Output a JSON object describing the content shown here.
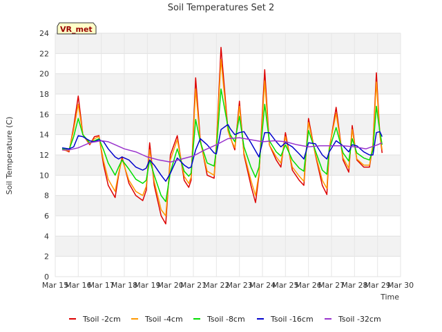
{
  "chart_data": {
    "type": "line",
    "title": "Soil Temperatures Set 2",
    "xlabel": "Time",
    "ylabel": "Soil Temperature (C)",
    "site_label": "VR_met",
    "xlim": [
      15,
      30
    ],
    "ylim": [
      0,
      24
    ],
    "x_ticks": [
      15,
      16,
      17,
      18,
      19,
      20,
      21,
      22,
      23,
      24,
      25,
      26,
      27,
      28,
      29,
      30
    ],
    "x_tick_labels": [
      "Mar 15",
      "Mar 16",
      "Mar 17",
      "Mar 18",
      "Mar 19",
      "Mar 20",
      "Mar 21",
      "Mar 22",
      "Mar 23",
      "Mar 24",
      "Mar 25",
      "Mar 26",
      "Mar 27",
      "Mar 28",
      "Mar 29",
      "Mar 30"
    ],
    "y_ticks": [
      0,
      2,
      4,
      6,
      8,
      10,
      12,
      14,
      16,
      18,
      20,
      22,
      24
    ],
    "grid": true,
    "legend_position": "bottom",
    "series": [
      {
        "name": "Tsoil -2cm",
        "color": "#dd0000",
        "x": [
          15.3,
          15.6,
          15.8,
          16.0,
          16.2,
          16.5,
          16.7,
          16.9,
          17.1,
          17.3,
          17.6,
          17.75,
          17.9,
          18.2,
          18.5,
          18.8,
          18.95,
          19.1,
          19.3,
          19.6,
          19.8,
          20.0,
          20.3,
          20.6,
          20.8,
          20.9,
          21.1,
          21.3,
          21.6,
          21.9,
          22.0,
          22.2,
          22.5,
          22.6,
          22.8,
          23.0,
          23.2,
          23.5,
          23.7,
          23.85,
          24.1,
          24.3,
          24.6,
          24.8,
          25.0,
          25.3,
          25.6,
          25.8,
          26.0,
          26.3,
          26.6,
          26.8,
          26.9,
          27.2,
          27.5,
          27.75,
          27.9,
          28.1,
          28.4,
          28.65,
          28.8,
          28.95,
          29.1,
          29.2
        ],
        "y": [
          12.6,
          12.3,
          14.8,
          17.8,
          14.0,
          13.0,
          13.8,
          13.9,
          11.0,
          9.0,
          7.8,
          10.0,
          11.8,
          9.2,
          8.0,
          7.5,
          8.5,
          13.2,
          9.0,
          6.0,
          5.2,
          12.0,
          13.9,
          9.5,
          8.8,
          9.5,
          19.6,
          13.5,
          10.0,
          9.7,
          13.0,
          22.6,
          14.5,
          13.8,
          12.5,
          17.3,
          12.0,
          9.0,
          7.3,
          10.0,
          20.4,
          13.0,
          11.5,
          10.8,
          14.2,
          10.5,
          9.5,
          9.0,
          15.6,
          12.0,
          9.0,
          8.1,
          12.5,
          16.7,
          11.5,
          10.3,
          14.9,
          11.5,
          10.8,
          10.8,
          13.0,
          20.1,
          14.0,
          12.2
        ]
      },
      {
        "name": "Tsoil -4cm",
        "color": "#ff9900",
        "x": [
          15.3,
          15.6,
          15.8,
          16.0,
          16.2,
          16.5,
          16.7,
          16.9,
          17.1,
          17.3,
          17.6,
          17.75,
          17.9,
          18.2,
          18.5,
          18.8,
          18.95,
          19.1,
          19.3,
          19.6,
          19.8,
          20.0,
          20.3,
          20.6,
          20.8,
          20.9,
          21.1,
          21.3,
          21.6,
          21.9,
          22.0,
          22.2,
          22.5,
          22.6,
          22.8,
          23.0,
          23.2,
          23.5,
          23.7,
          23.85,
          24.1,
          24.3,
          24.6,
          24.8,
          25.0,
          25.3,
          25.6,
          25.8,
          26.0,
          26.3,
          26.6,
          26.8,
          26.9,
          27.2,
          27.5,
          27.75,
          27.9,
          28.1,
          28.4,
          28.65,
          28.8,
          28.95,
          29.1,
          29.2
        ],
        "y": [
          12.5,
          12.4,
          14.5,
          17.0,
          14.0,
          13.1,
          13.6,
          13.8,
          11.4,
          9.6,
          8.4,
          10.2,
          11.6,
          9.5,
          8.4,
          8.0,
          8.9,
          12.5,
          9.4,
          6.6,
          6.0,
          11.5,
          13.5,
          9.9,
          9.2,
          9.8,
          18.5,
          13.3,
          10.4,
          10.0,
          13.0,
          21.4,
          14.4,
          13.7,
          12.7,
          16.8,
          12.2,
          9.5,
          8.0,
          10.2,
          19.3,
          13.0,
          11.8,
          11.2,
          13.8,
          10.8,
          9.9,
          9.4,
          15.2,
          12.1,
          9.5,
          8.7,
          12.7,
          16.1,
          11.7,
          10.7,
          14.5,
          11.6,
          11.0,
          11.0,
          13.0,
          19.2,
          14.0,
          12.5
        ]
      },
      {
        "name": "Tsoil -8cm",
        "color": "#00dd00",
        "x": [
          15.3,
          15.6,
          15.8,
          16.0,
          16.2,
          16.5,
          16.7,
          16.9,
          17.1,
          17.3,
          17.6,
          17.75,
          17.9,
          18.2,
          18.5,
          18.8,
          18.95,
          19.1,
          19.3,
          19.6,
          19.8,
          20.0,
          20.3,
          20.6,
          20.8,
          20.9,
          21.1,
          21.3,
          21.6,
          21.9,
          22.0,
          22.2,
          22.5,
          22.6,
          22.8,
          23.0,
          23.2,
          23.5,
          23.7,
          23.85,
          24.1,
          24.3,
          24.6,
          24.8,
          25.0,
          25.3,
          25.6,
          25.8,
          26.0,
          26.3,
          26.6,
          26.8,
          26.9,
          27.2,
          27.5,
          27.75,
          27.9,
          28.1,
          28.4,
          28.65,
          28.8,
          28.95,
          29.1,
          29.2
        ],
        "y": [
          12.6,
          12.5,
          13.8,
          15.6,
          14.0,
          13.2,
          13.4,
          13.6,
          12.5,
          11.2,
          10.0,
          10.8,
          11.5,
          10.6,
          9.6,
          9.2,
          9.5,
          11.5,
          10.0,
          8.0,
          7.4,
          10.3,
          12.6,
          10.4,
          9.9,
          10.2,
          15.5,
          13.3,
          11.2,
          10.9,
          12.5,
          18.5,
          14.8,
          14.0,
          13.3,
          15.8,
          12.8,
          10.8,
          9.8,
          10.8,
          17.0,
          13.4,
          12.3,
          11.9,
          13.0,
          11.5,
          10.7,
          10.4,
          14.4,
          12.4,
          10.5,
          10.1,
          12.5,
          14.7,
          12.2,
          11.4,
          13.6,
          12.2,
          11.7,
          11.5,
          12.5,
          16.8,
          14.3,
          13.0
        ]
      },
      {
        "name": "Tsoil -16cm",
        "color": "#0000cc",
        "x": [
          15.3,
          15.6,
          15.8,
          16.0,
          16.2,
          16.5,
          16.7,
          16.9,
          17.1,
          17.3,
          17.6,
          17.75,
          17.9,
          18.2,
          18.5,
          18.8,
          18.95,
          19.1,
          19.3,
          19.6,
          19.8,
          20.0,
          20.3,
          20.6,
          20.8,
          20.9,
          21.1,
          21.3,
          21.6,
          21.9,
          22.0,
          22.2,
          22.5,
          22.6,
          22.8,
          23.0,
          23.2,
          23.5,
          23.7,
          23.85,
          24.1,
          24.3,
          24.6,
          24.8,
          25.0,
          25.3,
          25.6,
          25.8,
          26.0,
          26.3,
          26.6,
          26.8,
          26.9,
          27.2,
          27.5,
          27.75,
          27.9,
          28.1,
          28.4,
          28.65,
          28.8,
          28.95,
          29.1,
          29.2
        ],
        "y": [
          12.7,
          12.6,
          12.8,
          13.9,
          13.8,
          13.4,
          13.3,
          13.5,
          13.3,
          12.6,
          11.8,
          11.6,
          11.8,
          11.5,
          10.8,
          10.5,
          10.7,
          11.5,
          11.0,
          10.0,
          9.4,
          10.2,
          11.7,
          11.0,
          10.7,
          10.8,
          12.5,
          13.6,
          13.0,
          12.2,
          12.1,
          14.5,
          15.0,
          14.6,
          14.0,
          14.2,
          14.3,
          13.2,
          12.4,
          11.8,
          14.2,
          14.2,
          13.3,
          12.8,
          13.2,
          12.8,
          12.1,
          11.6,
          13.2,
          13.1,
          12.0,
          11.6,
          12.3,
          13.4,
          12.9,
          12.3,
          13.0,
          12.9,
          12.3,
          12.0,
          12.0,
          14.2,
          14.3,
          13.8
        ]
      },
      {
        "name": "Tsoil -32cm",
        "color": "#9933cc",
        "x": [
          15.3,
          15.6,
          16.0,
          16.5,
          17.0,
          17.3,
          17.6,
          18.0,
          18.5,
          18.8,
          19.0,
          19.5,
          20.0,
          20.5,
          21.0,
          21.5,
          22.0,
          22.5,
          23.0,
          23.5,
          24.0,
          24.5,
          25.0,
          25.5,
          26.0,
          26.5,
          27.0,
          27.5,
          28.0,
          28.5,
          29.0,
          29.2
        ],
        "y": [
          12.5,
          12.5,
          12.7,
          13.2,
          13.4,
          13.3,
          13.0,
          12.6,
          12.3,
          12.0,
          11.8,
          11.5,
          11.3,
          11.6,
          11.9,
          12.5,
          13.0,
          13.6,
          13.7,
          13.5,
          13.3,
          13.4,
          13.3,
          13.0,
          12.8,
          12.9,
          12.9,
          12.9,
          12.8,
          12.6,
          13.0,
          13.2
        ]
      }
    ]
  }
}
